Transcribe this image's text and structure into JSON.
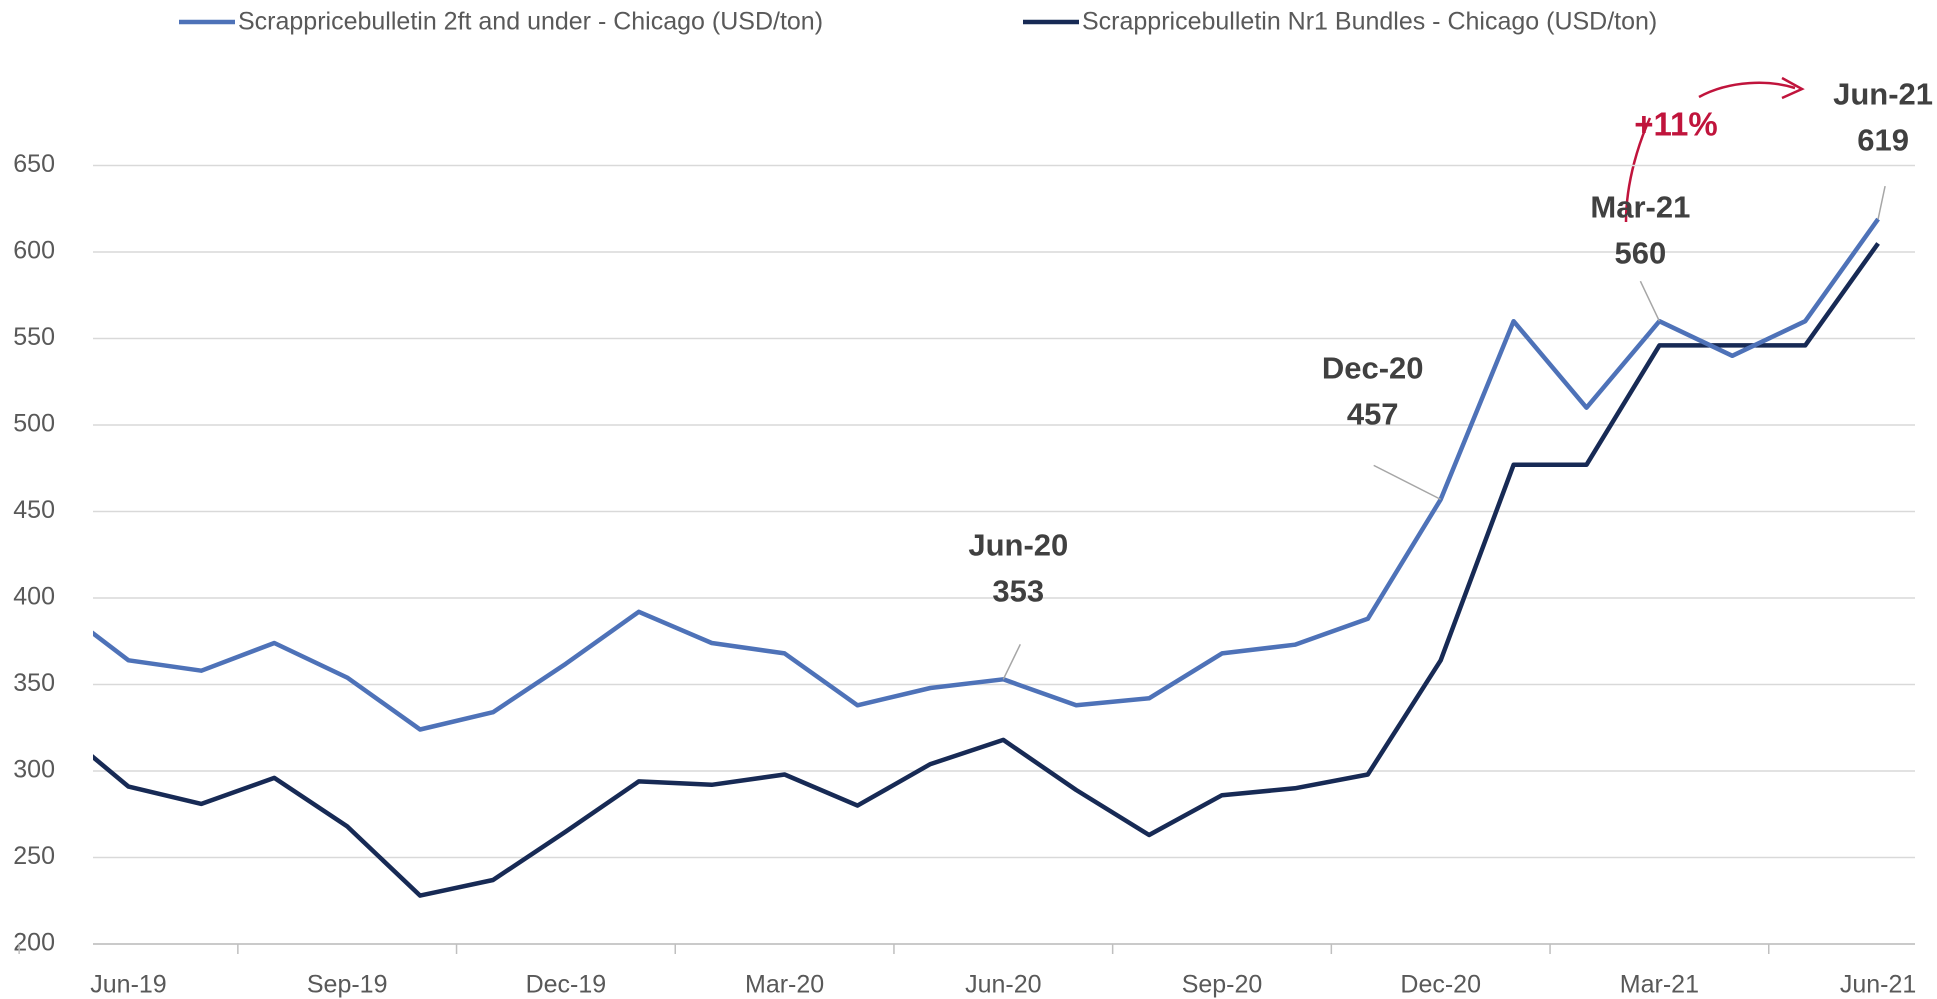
{
  "chart_data": {
    "type": "line",
    "categories": [
      null,
      "Jun-19",
      null,
      null,
      "Sep-19",
      null,
      null,
      "Dec-19",
      null,
      null,
      "Mar-20",
      null,
      null,
      "Jun-20",
      null,
      null,
      "Sep-20",
      null,
      null,
      "Dec-20",
      null,
      null,
      "Mar-21",
      null,
      null,
      "Jun-21"
    ],
    "series": [
      {
        "name": "Scrappricebulletin 2ft and under - Chicago (USD/ton)",
        "color": "#4e72b8",
        "values": [
          396,
          364,
          358,
          374,
          354,
          324,
          334,
          362,
          392,
          374,
          368,
          338,
          348,
          353,
          338,
          342,
          368,
          373,
          388,
          457,
          560,
          510,
          560,
          540,
          560,
          619
        ]
      },
      {
        "name": "Scrappricebulletin Nr1 Bundles - Chicago (USD/ton)",
        "color": "#172a55",
        "values": [
          326,
          291,
          281,
          296,
          268,
          228,
          237,
          265,
          294,
          292,
          298,
          280,
          304,
          318,
          289,
          263,
          286,
          290,
          298,
          364,
          477,
          477,
          546,
          546,
          546,
          605
        ]
      }
    ],
    "ylim": [
      200,
      650
    ],
    "yticks": [
      200,
      250,
      300,
      350,
      400,
      450,
      500,
      550,
      600,
      650
    ],
    "grid": true,
    "legend": "top",
    "annotations": [
      {
        "text": "Jun-20",
        "value": 353
      },
      {
        "text": "Dec-20",
        "value": 457
      },
      {
        "text": "Mar-21",
        "value": 560
      },
      {
        "text": "Jun-21",
        "value": 619
      }
    ],
    "change_label": "+11%"
  }
}
